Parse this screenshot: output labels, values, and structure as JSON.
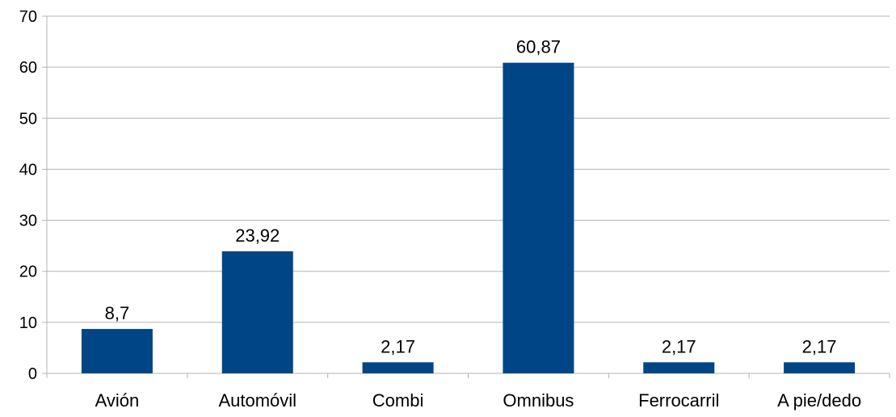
{
  "chart_data": {
    "type": "bar",
    "categories": [
      "Avión",
      "Automóvil",
      "Combi",
      "Omnibus",
      "Ferrocarril",
      "A pie/dedo"
    ],
    "values": [
      8.7,
      23.92,
      2.17,
      60.87,
      2.17,
      2.17
    ],
    "value_labels": [
      "8,7",
      "23,92",
      "2,17",
      "60,87",
      "2,17",
      "2,17"
    ],
    "y_ticks": [
      0,
      10,
      20,
      30,
      40,
      50,
      60,
      70
    ],
    "ylim": [
      0,
      70
    ],
    "grid": true,
    "legend": "none",
    "title": "",
    "xlabel": "",
    "ylabel": "",
    "colors": {
      "bar": "#004586",
      "grid": "#b3b3b3",
      "axis": "#b3b3b3"
    }
  }
}
